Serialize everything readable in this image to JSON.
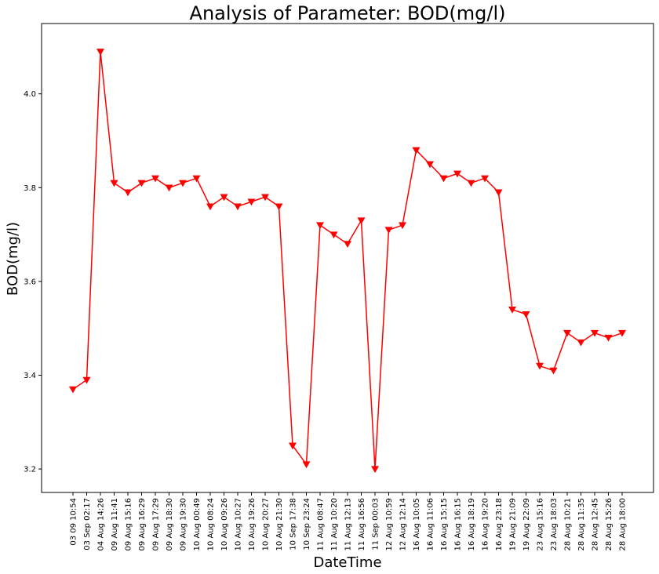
{
  "chart_data": {
    "type": "line",
    "title": "Analysis of Parameter: BOD(mg/l)",
    "xlabel": "DateTime",
    "ylabel": "BOD(mg/l)",
    "ylim": [
      3.15,
      4.15
    ],
    "yticks": [
      3.2,
      3.4,
      3.6,
      3.8,
      4.0
    ],
    "ytick_labels": [
      "3.2",
      "3.4",
      "3.6",
      "3.8",
      "4.0"
    ],
    "grid": false,
    "line_color": "#ff0000",
    "marker_color": "#ff0000",
    "marker": "triangle-down",
    "categories": [
      "03 09 10:54",
      "03 Sep 02:17",
      "04 Aug 14:26",
      "09 Aug 11:41",
      "09 Aug 15:16",
      "09 Aug 16:29",
      "09 Aug 17:29",
      "09 Aug 18:30",
      "09 Aug 19:30",
      "10 Aug 00:49",
      "10 Aug 08:24",
      "10 Aug 09:26",
      "10 Aug 10:27",
      "10 Aug 19:26",
      "10 Aug 20:27",
      "10 Aug 21:30",
      "10 Sep 17:38",
      "10 Sep 23:24",
      "11 Aug 08:47",
      "11 Aug 10:20",
      "11 Aug 12:13",
      "11 Aug 16:56",
      "11 Sep 00:03",
      "12 Aug 10:59",
      "12 Aug 12:14",
      "16 Aug 10:05",
      "16 Aug 11:06",
      "16 Aug 15:15",
      "16 Aug 16:15",
      "16 Aug 18:19",
      "16 Aug 19:20",
      "16 Aug 23:18",
      "19 Aug 21:09",
      "19 Aug 22:09",
      "23 Aug 15:16",
      "23 Aug 18:03",
      "28 Aug 10:21",
      "28 Aug 11:35",
      "28 Aug 12:45",
      "28 Aug 15:26",
      "28 Aug 18:00"
    ],
    "values": [
      3.37,
      3.39,
      4.09,
      3.81,
      3.79,
      3.81,
      3.82,
      3.8,
      3.81,
      3.82,
      3.76,
      3.78,
      3.76,
      3.77,
      3.78,
      3.76,
      3.25,
      3.21,
      3.72,
      3.7,
      3.68,
      3.73,
      3.2,
      3.71,
      3.72,
      3.88,
      3.85,
      3.82,
      3.83,
      3.81,
      3.82,
      3.79,
      3.54,
      3.53,
      3.42,
      3.41,
      3.49,
      3.47,
      3.49,
      3.48,
      3.49
    ]
  }
}
